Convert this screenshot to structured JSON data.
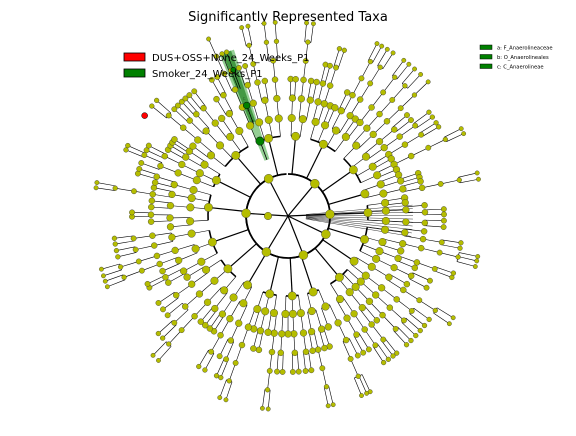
{
  "chart_data": {
    "type": "cladogram",
    "title": "Significantly Represented Taxa",
    "legend": {
      "placement": "top-left",
      "entries": [
        {
          "label": "DUS+OSS+None_24_Weeks_P1",
          "color": "#ff0000"
        },
        {
          "label": "Smoker_24_Weeks_P1",
          "color": "#008000"
        }
      ]
    },
    "clade_legend": {
      "placement": "top-right",
      "entries": [
        {
          "label": "a: F_Anaerolineaceae",
          "color": "#008000"
        },
        {
          "label": "b: O_Anaerolineales",
          "color": "#008000"
        },
        {
          "label": "c: C_Anaerolineae",
          "color": "#008000"
        }
      ]
    },
    "highlighted_clades": [
      {
        "label": "a",
        "group": "Smoker_24_Weeks_P1"
      },
      {
        "label": "b",
        "group": "Smoker_24_Weeks_P1"
      },
      {
        "label": "c",
        "group": "Smoker_24_Weeks_P1"
      }
    ],
    "highlighted_node_groups": [
      "DUS+OSS+None_24_Weeks_P1"
    ],
    "node_color": "#b5bd00",
    "enriched_colors": {
      "DUS+OSS+None_24_Weeks_P1": "#ff0000",
      "Smoker_24_Weeks_P1": "#008000"
    },
    "clade_fill_color": "#66bb66"
  }
}
